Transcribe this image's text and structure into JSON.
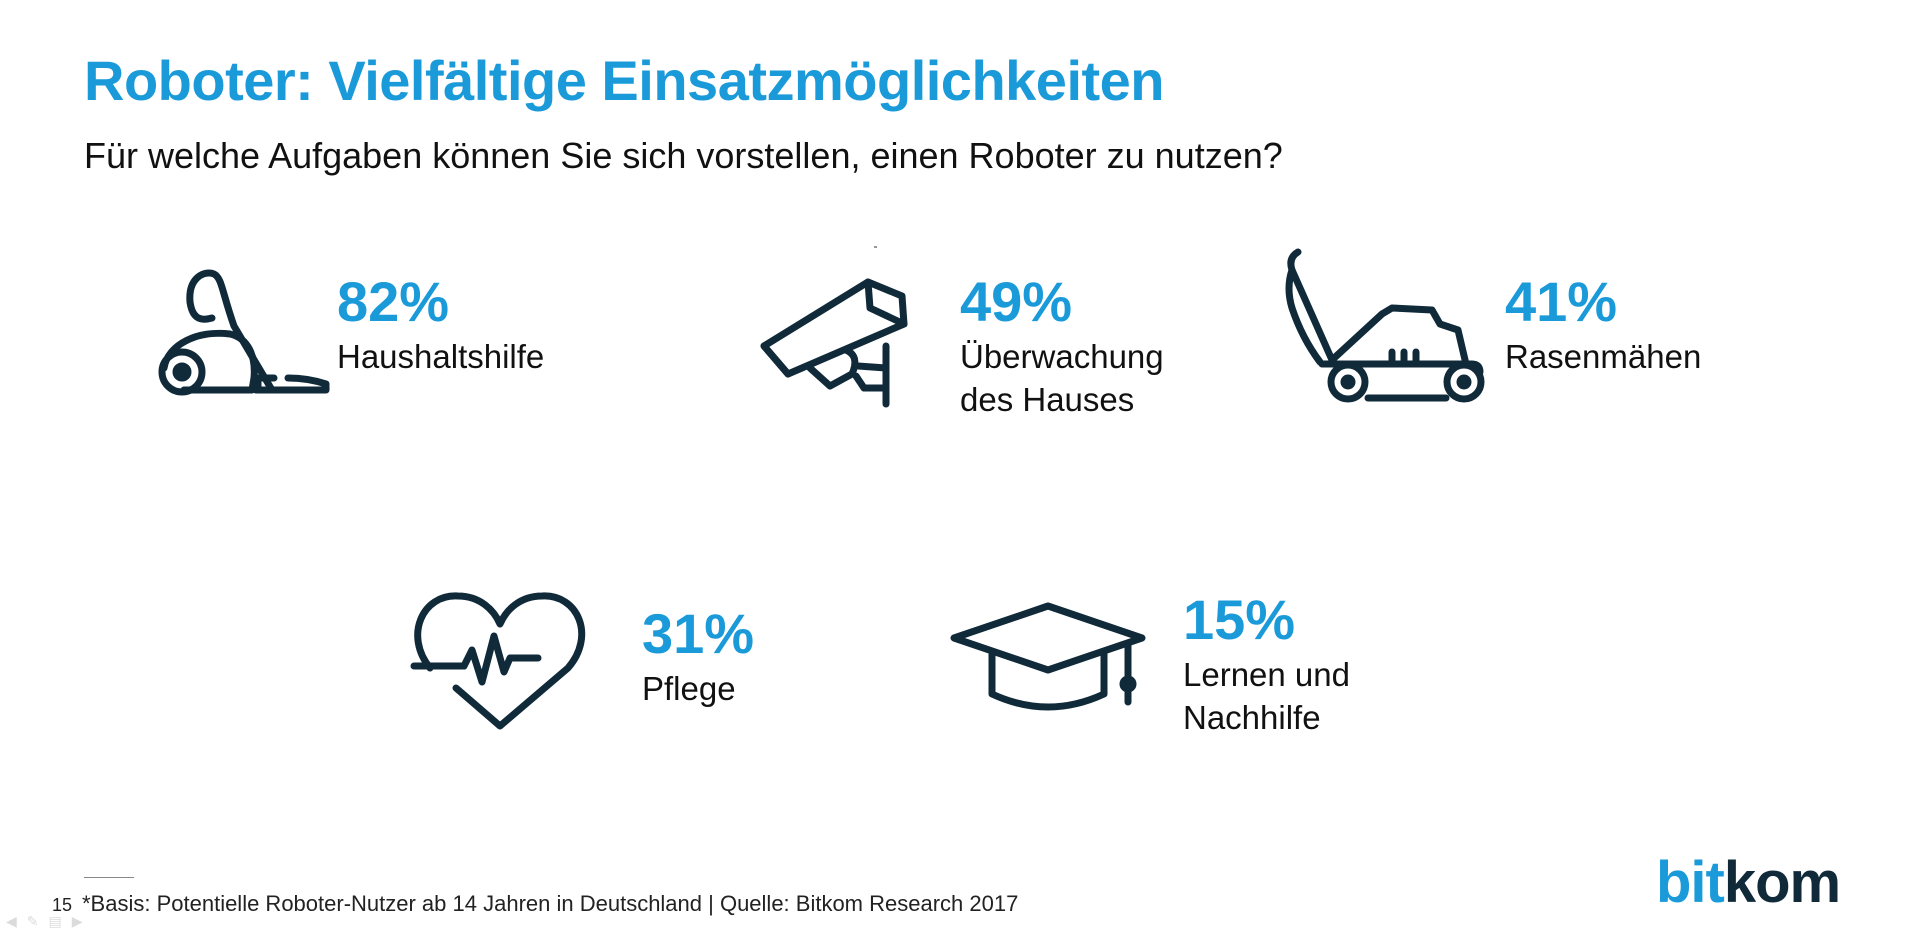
{
  "slide": {
    "title": "Roboter: Vielfältige Einsatzmöglichkeiten",
    "subtitle": "Für welche Aufgaben können Sie sich vorstellen, einen Roboter zu nutzen?",
    "accent_color": "#1a9ad9",
    "dark_color": "#102a3a"
  },
  "items": [
    {
      "icon": "vacuum-cleaner-icon",
      "percent": "82%",
      "label": "Haushaltshilfe"
    },
    {
      "icon": "security-camera-icon",
      "percent": "49%",
      "label": "Überwachung des Hauses"
    },
    {
      "icon": "lawn-mower-icon",
      "percent": "41%",
      "label": "Rasenmähen"
    },
    {
      "icon": "heartbeat-icon",
      "percent": "31%",
      "label": "Pflege"
    },
    {
      "icon": "graduation-cap-icon",
      "percent": "15%",
      "label": "Lernen und Nachhilfe"
    }
  ],
  "footer": {
    "page_number": "15",
    "footnote": "*Basis: Potentielle Roboter-Nutzer ab 14 Jahren in Deutschland | Quelle: Bitkom Research 2017",
    "logo_part1": "bit",
    "logo_part2": "kom"
  },
  "nav_icons": [
    "back-arrow-icon",
    "pen-icon",
    "slides-icon",
    "forward-arrow-icon"
  ]
}
